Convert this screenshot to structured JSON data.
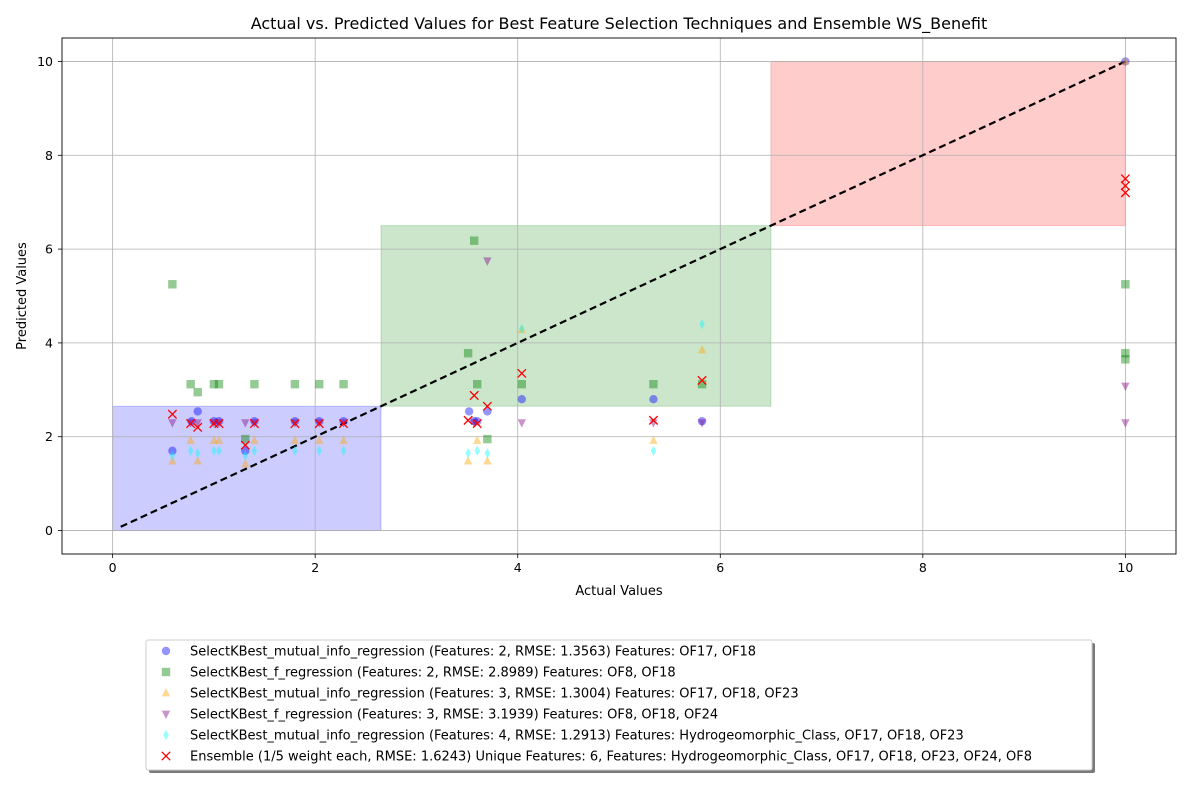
{
  "chart_data": {
    "type": "scatter",
    "title": "Actual vs. Predicted Values for Best Feature Selection Techniques and Ensemble WS_Benefit",
    "xlabel": "Actual Values",
    "ylabel": "Predicted Values",
    "xlim": [
      -0.5,
      10.5
    ],
    "ylim": [
      -0.5,
      10.5
    ],
    "xticks": [
      "0",
      "2",
      "4",
      "6",
      "8",
      "10"
    ],
    "yticks": [
      "0",
      "2",
      "4",
      "6",
      "8",
      "10"
    ],
    "grid": true,
    "legend_position": "bottom-center",
    "reference_line": {
      "style": "dashed",
      "color": "#000000",
      "from": [
        0.08,
        0.08
      ],
      "to": [
        10,
        10
      ]
    },
    "regions": [
      {
        "x": [
          0.0,
          2.65
        ],
        "y": [
          0.0,
          2.65
        ],
        "color": "#0000ff"
      },
      {
        "x": [
          2.65,
          6.5
        ],
        "y": [
          2.65,
          6.5
        ],
        "color": "#008000"
      },
      {
        "x": [
          6.5,
          10.0
        ],
        "y": [
          6.5,
          10.0
        ],
        "color": "#ff0000"
      }
    ],
    "series": [
      {
        "name": "SelectKBest_mutual_info_regression (Features: 2, RMSE: 1.3563) Features: OF17, OF18",
        "marker": "circle",
        "color": "#0000ff",
        "points": [
          [
            0.59,
            1.7
          ],
          [
            0.78,
            2.33
          ],
          [
            0.84,
            2.54
          ],
          [
            1.0,
            2.33
          ],
          [
            1.05,
            2.33
          ],
          [
            1.31,
            1.7
          ],
          [
            1.4,
            2.33
          ],
          [
            1.8,
            2.33
          ],
          [
            2.04,
            2.33
          ],
          [
            2.28,
            2.33
          ],
          [
            3.52,
            2.54
          ],
          [
            3.57,
            2.33
          ],
          [
            3.6,
            2.33
          ],
          [
            3.7,
            2.54
          ],
          [
            4.04,
            2.8
          ],
          [
            5.34,
            2.8
          ],
          [
            5.82,
            2.33
          ],
          [
            10.0,
            10.0
          ]
        ]
      },
      {
        "name": "SelectKBest_f_regression (Features: 2, RMSE: 2.8989) Features: OF8, OF18",
        "marker": "square",
        "color": "#008000",
        "points": [
          [
            0.59,
            5.25
          ],
          [
            0.77,
            3.12
          ],
          [
            0.84,
            2.95
          ],
          [
            1.0,
            3.12
          ],
          [
            1.05,
            3.12
          ],
          [
            1.31,
            1.95
          ],
          [
            1.4,
            3.12
          ],
          [
            1.8,
            3.12
          ],
          [
            2.04,
            3.12
          ],
          [
            2.28,
            3.12
          ],
          [
            3.51,
            3.78
          ],
          [
            3.57,
            6.18
          ],
          [
            3.6,
            3.12
          ],
          [
            3.7,
            1.95
          ],
          [
            4.04,
            3.12
          ],
          [
            5.34,
            3.12
          ],
          [
            5.82,
            3.12
          ],
          [
            10.0,
            5.25
          ],
          [
            10.0,
            3.78
          ],
          [
            10.0,
            3.65
          ]
        ]
      },
      {
        "name": "SelectKBest_mutual_info_regression (Features: 3, RMSE: 1.3004) Features: OF17, OF18, OF23",
        "marker": "triangle-up",
        "color": "#ffa500",
        "points": [
          [
            0.59,
            1.48
          ],
          [
            0.77,
            1.92
          ],
          [
            0.84,
            1.48
          ],
          [
            1.0,
            1.92
          ],
          [
            1.05,
            1.92
          ],
          [
            1.31,
            1.42
          ],
          [
            1.4,
            1.92
          ],
          [
            1.8,
            1.92
          ],
          [
            2.04,
            1.92
          ],
          [
            2.28,
            1.92
          ],
          [
            3.51,
            1.48
          ],
          [
            3.6,
            1.92
          ],
          [
            3.7,
            1.48
          ],
          [
            4.04,
            4.28
          ],
          [
            5.34,
            1.92
          ],
          [
            5.82,
            3.85
          ],
          [
            10.0,
            10.0
          ]
        ]
      },
      {
        "name": "SelectKBest_f_regression (Features: 3, RMSE: 3.1939) Features: OF8, OF18, OF24",
        "marker": "triangle-down",
        "color": "#800080",
        "points": [
          [
            0.59,
            2.3
          ],
          [
            0.77,
            2.3
          ],
          [
            0.84,
            2.3
          ],
          [
            1.0,
            2.3
          ],
          [
            1.05,
            2.3
          ],
          [
            1.31,
            2.3
          ],
          [
            1.4,
            2.3
          ],
          [
            1.8,
            2.3
          ],
          [
            2.04,
            2.3
          ],
          [
            2.28,
            2.3
          ],
          [
            3.57,
            2.3
          ],
          [
            3.7,
            5.75
          ],
          [
            4.04,
            2.3
          ],
          [
            5.34,
            2.3
          ],
          [
            5.82,
            2.3
          ],
          [
            10.0,
            3.08
          ],
          [
            10.0,
            2.3
          ]
        ]
      },
      {
        "name": "SelectKBest_mutual_info_regression (Features: 4, RMSE: 1.2913) Features: Hydrogeomorphic_Class, OF17, OF18, OF23",
        "marker": "diamond",
        "color": "#00ffff",
        "points": [
          [
            0.59,
            1.6
          ],
          [
            0.77,
            1.7
          ],
          [
            0.84,
            1.65
          ],
          [
            1.0,
            1.7
          ],
          [
            1.05,
            1.7
          ],
          [
            1.31,
            1.6
          ],
          [
            1.4,
            1.7
          ],
          [
            1.8,
            1.7
          ],
          [
            2.04,
            1.7
          ],
          [
            2.28,
            1.7
          ],
          [
            3.51,
            1.65
          ],
          [
            3.6,
            1.7
          ],
          [
            3.7,
            1.65
          ],
          [
            4.04,
            4.3
          ],
          [
            5.34,
            1.7
          ],
          [
            5.82,
            4.4
          ]
        ]
      },
      {
        "name": "Ensemble (1/5 weight each, RMSE: 1.6243) Unique Features: 6, Features: Hydrogeomorphic_Class, OF17, OF18, OF23, OF24, OF8",
        "marker": "x",
        "color": "#ff0000",
        "points": [
          [
            0.59,
            2.48
          ],
          [
            0.77,
            2.28
          ],
          [
            0.84,
            2.2
          ],
          [
            1.0,
            2.28
          ],
          [
            1.05,
            2.28
          ],
          [
            1.31,
            1.82
          ],
          [
            1.4,
            2.28
          ],
          [
            1.8,
            2.28
          ],
          [
            2.04,
            2.28
          ],
          [
            2.28,
            2.28
          ],
          [
            3.51,
            2.35
          ],
          [
            3.57,
            2.88
          ],
          [
            3.6,
            2.28
          ],
          [
            3.7,
            2.65
          ],
          [
            4.04,
            3.35
          ],
          [
            5.34,
            2.35
          ],
          [
            5.82,
            3.2
          ],
          [
            10.0,
            7.5
          ],
          [
            10.0,
            7.35
          ],
          [
            10.0,
            7.2
          ]
        ]
      }
    ]
  }
}
